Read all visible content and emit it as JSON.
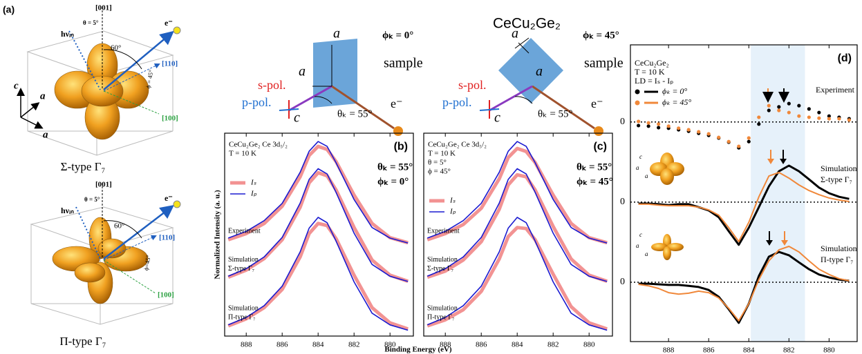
{
  "figure_title": "CeCu₂Ge₂",
  "panel_a": {
    "label": "(a)",
    "axes": [
      "c",
      "a",
      "a"
    ],
    "sigma": {
      "zaxis": "[001]",
      "theta": "θ = 5°",
      "photon": "hνᵢₙ",
      "angle": "60°",
      "electron": "e⁻",
      "dir110": "[110]",
      "phi": "ϕ = 45°",
      "dir100": "[100]",
      "caption": "Σ-type Γ₇"
    },
    "pi": {
      "zaxis": "[001]",
      "theta": "θ = 5°",
      "photon": "hνᵢₙ",
      "angle": "60°",
      "electron": "e⁻",
      "dir110": "[110]",
      "phi": "ϕ=45°",
      "dir100": "[100]",
      "caption": "Π-type Γ₇"
    }
  },
  "geometry": [
    {
      "a1": "a",
      "a2": "a",
      "c": "c",
      "phi": "ϕₖ = 0°",
      "sample": "sample",
      "spol": "s-pol.",
      "ppol": "p-pol.",
      "theta": "θₖ = 55°",
      "electron": "e⁻"
    },
    {
      "a1": "a",
      "a2": "a",
      "c": "c",
      "phi": "ϕₖ = 45°",
      "sample": "sample",
      "spol": "s-pol.",
      "ppol": "p-pol.",
      "theta": "θₖ = 55°",
      "electron": "e⁻"
    }
  ],
  "chart_data": [
    {
      "type": "line",
      "label": "(b)",
      "ylabel": "Normalized Intensity (a. u.)",
      "xlabel": "Binding Energy (eV)",
      "annotations": [
        "CeCu₂Ge₂ Ce 3d₅/₂",
        "T = 10 K"
      ],
      "angles": [
        "θₖ = 55°",
        "ϕₖ = 0°"
      ],
      "x": [
        889,
        888,
        887,
        886,
        885,
        884.5,
        884,
        883.5,
        883,
        882,
        881,
        880,
        879
      ],
      "xlim": [
        889.2,
        878.7
      ],
      "xticks": [
        888,
        886,
        884,
        882,
        880
      ],
      "ylim": [
        0,
        10
      ],
      "groups": [
        {
          "label": [
            "Experiment"
          ],
          "series": [
            {
              "name": "Iₛ",
              "color": "#f08080",
              "values": [
                4.75,
                5.05,
                5.55,
                6.4,
                7.85,
                8.9,
                9.35,
                9.2,
                8.6,
                6.95,
                5.55,
                4.85,
                4.6
              ]
            },
            {
              "name": "Iₚ",
              "color": "#1a1ad0",
              "values": [
                4.83,
                5.16,
                5.69,
                6.54,
                8.07,
                9.11,
                9.59,
                9.35,
                8.54,
                6.73,
                5.35,
                4.83,
                4.59
              ]
            }
          ]
        },
        {
          "label": [
            "Simulation",
            "Σ-type Γ₇"
          ],
          "series": [
            {
              "name": "Iₛ",
              "color": "#f08080",
              "values": [
                2.9,
                3.25,
                3.82,
                4.75,
                6.35,
                7.55,
                8.05,
                7.9,
                7.2,
                5.35,
                3.75,
                3.0,
                2.7
              ]
            },
            {
              "name": "Iₚ",
              "color": "#1a1ad0",
              "values": [
                2.95,
                3.32,
                3.9,
                4.86,
                6.55,
                7.72,
                8.25,
                7.99,
                7.08,
                5.07,
                3.53,
                2.95,
                2.69
              ]
            }
          ]
        },
        {
          "label": [
            "Simulation",
            "Π-type Γ₇"
          ],
          "series": [
            {
              "name": "Iₛ",
              "color": "#f08080",
              "values": [
                0.5,
                0.85,
                1.4,
                2.3,
                3.9,
                5.05,
                5.55,
                5.45,
                4.8,
                3.0,
                1.4,
                0.65,
                0.35
              ]
            },
            {
              "name": "Iₚ",
              "color": "#1a1ad0",
              "values": [
                0.55,
                0.92,
                1.5,
                2.46,
                4.15,
                5.32,
                5.85,
                5.59,
                4.68,
                2.67,
                1.13,
                0.55,
                0.29
              ]
            }
          ]
        }
      ]
    },
    {
      "type": "line",
      "label": "(c)",
      "annotations": [
        "CeCu₂Ge₂ Ce 3d₅/₂",
        "T = 10 K",
        "θ = 5°",
        "ϕ = 45°"
      ],
      "angles": [
        "θₖ = 55°",
        "ϕₖ = 45°"
      ],
      "x": [
        889,
        888,
        887,
        886,
        885,
        884.5,
        884,
        883.5,
        883,
        882,
        881,
        880,
        879
      ],
      "xlim": [
        889.2,
        878.7
      ],
      "xticks": [
        888,
        886,
        884,
        882,
        880
      ],
      "ylim": [
        0,
        10
      ],
      "groups": [
        {
          "label": [
            "Experiment"
          ],
          "series": [
            {
              "name": "Iₛ",
              "color": "#f08080",
              "values": [
                4.75,
                5.05,
                5.5,
                6.3,
                7.75,
                8.8,
                9.25,
                9.1,
                8.55,
                6.95,
                5.55,
                4.85,
                4.6
              ]
            },
            {
              "name": "Iₚ",
              "color": "#1a1ad0",
              "values": [
                4.83,
                5.16,
                5.69,
                6.54,
                8.07,
                9.11,
                9.59,
                9.35,
                8.54,
                6.73,
                5.35,
                4.83,
                4.59
              ]
            }
          ]
        },
        {
          "label": [
            "Simulation",
            "Σ-type Γ₇"
          ],
          "series": [
            {
              "name": "Iₛ",
              "color": "#f08080",
              "values": [
                2.9,
                3.2,
                3.75,
                4.65,
                6.25,
                7.45,
                7.95,
                7.85,
                7.2,
                5.4,
                3.8,
                3.0,
                2.7
              ]
            },
            {
              "name": "Iₚ",
              "color": "#1a1ad0",
              "values": [
                2.95,
                3.32,
                3.9,
                4.86,
                6.55,
                7.72,
                8.25,
                7.99,
                7.08,
                5.07,
                3.53,
                2.95,
                2.69
              ]
            }
          ]
        },
        {
          "label": [
            "Simulation",
            "Π-type Γ₇"
          ],
          "series": [
            {
              "name": "Iₛ",
              "color": "#f08080",
              "values": [
                0.5,
                0.8,
                1.3,
                2.2,
                3.8,
                4.9,
                5.35,
                5.3,
                4.75,
                3.05,
                1.45,
                0.65,
                0.35
              ]
            },
            {
              "name": "Iₚ",
              "color": "#1a1ad0",
              "values": [
                0.55,
                0.92,
                1.5,
                2.46,
                4.15,
                5.32,
                5.85,
                5.59,
                4.68,
                2.67,
                1.13,
                0.55,
                0.29
              ]
            }
          ]
        }
      ]
    },
    {
      "type": "line",
      "label": "(d)",
      "annotations": [
        "CeCu₂Ge₂",
        "T = 10 K",
        "LD = Iₛ - Iₚ"
      ],
      "inset_axes": [
        "c",
        "a",
        "a"
      ],
      "x": [
        889.5,
        889,
        888.5,
        888,
        887.5,
        887,
        886.5,
        886,
        885.5,
        885,
        884.5,
        884,
        883.5,
        883,
        882.5,
        882,
        881.5,
        881,
        880.5,
        880,
        879.5,
        879
      ],
      "xlim": [
        889.9,
        878.6
      ],
      "xticks": [
        888,
        886,
        884,
        882,
        880
      ],
      "ylim": [
        0,
        10
      ],
      "yticks": [
        {
          "value": 7.4,
          "label": "0"
        },
        {
          "value": 4.7,
          "label": "0"
        },
        {
          "value": 2.0,
          "label": "0"
        }
      ],
      "shaded_xrange": [
        883.9,
        881.2
      ],
      "groups": [
        {
          "label": [
            "Experiment"
          ],
          "style": "dots",
          "series": [
            {
              "name": "ϕₖ = 0°",
              "color": "#000000",
              "values": [
                7.28,
                7.26,
                7.21,
                7.19,
                7.14,
                7.09,
                7.02,
                6.95,
                6.86,
                6.72,
                6.53,
                6.74,
                7.33,
                7.79,
                7.91,
                8.02,
                7.95,
                7.84,
                7.72,
                7.6,
                7.56,
                7.51
              ]
            },
            {
              "name": "ϕₖ = 45°",
              "color": "#f0883a",
              "values": [
                7.42,
                7.37,
                7.33,
                7.26,
                7.19,
                7.14,
                7.07,
                7.0,
                6.88,
                6.74,
                6.58,
                6.86,
                7.56,
                7.95,
                7.79,
                7.72,
                7.6,
                7.56,
                7.53,
                7.51,
                7.51,
                7.47
              ]
            }
          ]
        },
        {
          "label": [
            "Simulation",
            "Σ-type Γ₇"
          ],
          "style": "line",
          "series": [
            {
              "name": "ϕₖ = 0°",
              "color": "#000000",
              "values": [
                4.65,
                4.65,
                4.63,
                4.6,
                4.63,
                4.63,
                4.53,
                4.42,
                4.19,
                3.72,
                3.26,
                3.84,
                4.53,
                5.23,
                5.74,
                5.93,
                5.74,
                5.47,
                5.19,
                5.0,
                4.88,
                4.81
              ]
            },
            {
              "name": "ϕₖ = 45°",
              "color": "#f0883a",
              "values": [
                4.63,
                4.63,
                4.6,
                4.58,
                4.58,
                4.58,
                4.53,
                4.44,
                4.26,
                3.84,
                3.37,
                4.02,
                4.88,
                5.58,
                5.7,
                5.51,
                5.28,
                5.09,
                4.95,
                4.84,
                4.77,
                4.72
              ]
            }
          ]
        },
        {
          "label": [
            "Simulation",
            "Π-type Γ₇"
          ],
          "style": "line",
          "series": [
            {
              "name": "ϕₖ = 0°",
              "color": "#000000",
              "values": [
                1.95,
                1.95,
                1.93,
                1.91,
                1.91,
                1.88,
                1.84,
                1.74,
                1.51,
                1.09,
                0.63,
                1.28,
                2.21,
                2.86,
                3.02,
                2.91,
                2.67,
                2.44,
                2.26,
                2.16,
                2.09,
                2.05
              ]
            },
            {
              "name": "ϕₖ = 45°",
              "color": "#f0883a",
              "values": [
                1.93,
                1.88,
                1.79,
                1.65,
                1.6,
                1.63,
                1.7,
                1.65,
                1.47,
                1.12,
                0.7,
                1.28,
                2.09,
                2.72,
                3.09,
                3.21,
                3.02,
                2.72,
                2.44,
                2.26,
                2.12,
                2.05
              ]
            }
          ]
        }
      ]
    }
  ]
}
